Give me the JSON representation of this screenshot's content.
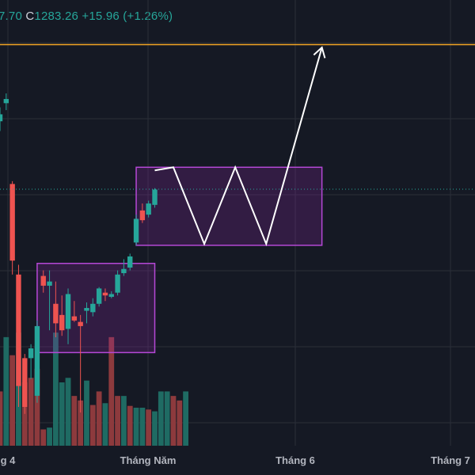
{
  "header": {
    "prev_value": "7.70",
    "close_label": "C",
    "close_value": "1283.26",
    "change": "+15.96",
    "change_pct": "(+1.26%)"
  },
  "colors": {
    "background": "#151924",
    "grid": "#2a2e39",
    "up": "#26a69a",
    "down": "#ef5350",
    "vol_up": "#1f6b63",
    "vol_down": "#8d3a3d",
    "resistance": "#f5a623",
    "box": "#b548d6",
    "box_fill": "rgba(156,39,176,0.22)",
    "projection": "#ffffff"
  },
  "chart_data": {
    "type": "candlestick",
    "x_ticks": [
      "g 4",
      "Tháng Năm",
      "Tháng 6",
      "Tháng 7"
    ],
    "resistance_level": 1320,
    "y_range": [
      1035,
      1335
    ],
    "candles": [
      {
        "o": 1265,
        "h": 1275,
        "l": 1258,
        "c": 1270
      },
      {
        "o": 1278,
        "h": 1285,
        "l": 1273,
        "c": 1281
      },
      {
        "o": 1220,
        "h": 1222,
        "l": 1155,
        "c": 1165
      },
      {
        "o": 1155,
        "h": 1162,
        "l": 1060,
        "c": 1075
      },
      {
        "o": 1095,
        "h": 1098,
        "l": 1055,
        "c": 1060
      },
      {
        "o": 1095,
        "h": 1105,
        "l": 1080,
        "c": 1102
      },
      {
        "o": 1068,
        "h": 1122,
        "l": 1063,
        "c": 1118
      },
      {
        "o": 1154,
        "h": 1158,
        "l": 1142,
        "c": 1147
      },
      {
        "o": 1147,
        "h": 1158,
        "l": 1115,
        "c": 1150
      },
      {
        "o": 1134,
        "h": 1150,
        "l": 1110,
        "c": 1120
      },
      {
        "o": 1126,
        "h": 1140,
        "l": 1111,
        "c": 1115
      },
      {
        "o": 1116,
        "h": 1145,
        "l": 1105,
        "c": 1141
      },
      {
        "o": 1125,
        "h": 1136,
        "l": 1121,
        "c": 1122
      },
      {
        "o": 1121,
        "h": 1126,
        "l": 1056,
        "c": 1118
      },
      {
        "o": 1129,
        "h": 1135,
        "l": 1120,
        "c": 1131
      },
      {
        "o": 1128,
        "h": 1138,
        "l": 1125,
        "c": 1134
      },
      {
        "o": 1134,
        "h": 1146,
        "l": 1132,
        "c": 1145
      },
      {
        "o": 1142,
        "h": 1145,
        "l": 1136,
        "c": 1140
      },
      {
        "o": 1139,
        "h": 1143,
        "l": 1138,
        "c": 1141
      },
      {
        "o": 1142,
        "h": 1158,
        "l": 1140,
        "c": 1155
      },
      {
        "o": 1156,
        "h": 1166,
        "l": 1154,
        "c": 1159
      },
      {
        "o": 1160,
        "h": 1170,
        "l": 1158,
        "c": 1168
      },
      {
        "o": 1178,
        "h": 1198,
        "l": 1176,
        "c": 1195
      },
      {
        "o": 1201,
        "h": 1206,
        "l": 1192,
        "c": 1194
      },
      {
        "o": 1198,
        "h": 1208,
        "l": 1196,
        "c": 1206
      },
      {
        "o": 1205,
        "h": 1217,
        "l": 1203,
        "c": 1216
      }
    ],
    "volumes": [
      {
        "v": 60,
        "up": false
      },
      {
        "v": 120,
        "up": true
      },
      {
        "v": 100,
        "up": false
      },
      {
        "v": 125,
        "up": true
      },
      {
        "v": 70,
        "up": false
      },
      {
        "v": 75,
        "up": false
      },
      {
        "v": 85,
        "up": false
      },
      {
        "v": 18,
        "up": false
      },
      {
        "v": 20,
        "up": true
      },
      {
        "v": 125,
        "up": true
      },
      {
        "v": 70,
        "up": true
      },
      {
        "v": 75,
        "up": true
      },
      {
        "v": 55,
        "up": false
      },
      {
        "v": 50,
        "up": false
      },
      {
        "v": 72,
        "up": true
      },
      {
        "v": 45,
        "up": false
      },
      {
        "v": 60,
        "up": false
      },
      {
        "v": 47,
        "up": true
      },
      {
        "v": 120,
        "up": false
      },
      {
        "v": 55,
        "up": false
      },
      {
        "v": 55,
        "up": true
      },
      {
        "v": 44,
        "up": false
      },
      {
        "v": 42,
        "up": true
      },
      {
        "v": 42,
        "up": true
      },
      {
        "v": 40,
        "up": false
      },
      {
        "v": 38,
        "up": true
      },
      {
        "v": 60,
        "up": true
      },
      {
        "v": 60,
        "up": true
      },
      {
        "v": 55,
        "up": false
      },
      {
        "v": 50,
        "up": false
      },
      {
        "v": 60,
        "up": true
      }
    ],
    "annotations": {
      "box1": {
        "from_bar": 6,
        "to_bar": 25,
        "price_top": 1163,
        "price_bottom": 1099
      },
      "box2": {
        "from_bar": 22,
        "to_bar": 52,
        "price_top": 1232,
        "price_bottom": 1176
      },
      "zigzag": [
        {
          "bar": 28,
          "price": 1232
        },
        {
          "bar": 33,
          "price": 1177
        },
        {
          "bar": 38,
          "price": 1232
        },
        {
          "bar": 43,
          "price": 1177
        },
        {
          "bar": 52,
          "price": 1318
        }
      ]
    }
  }
}
